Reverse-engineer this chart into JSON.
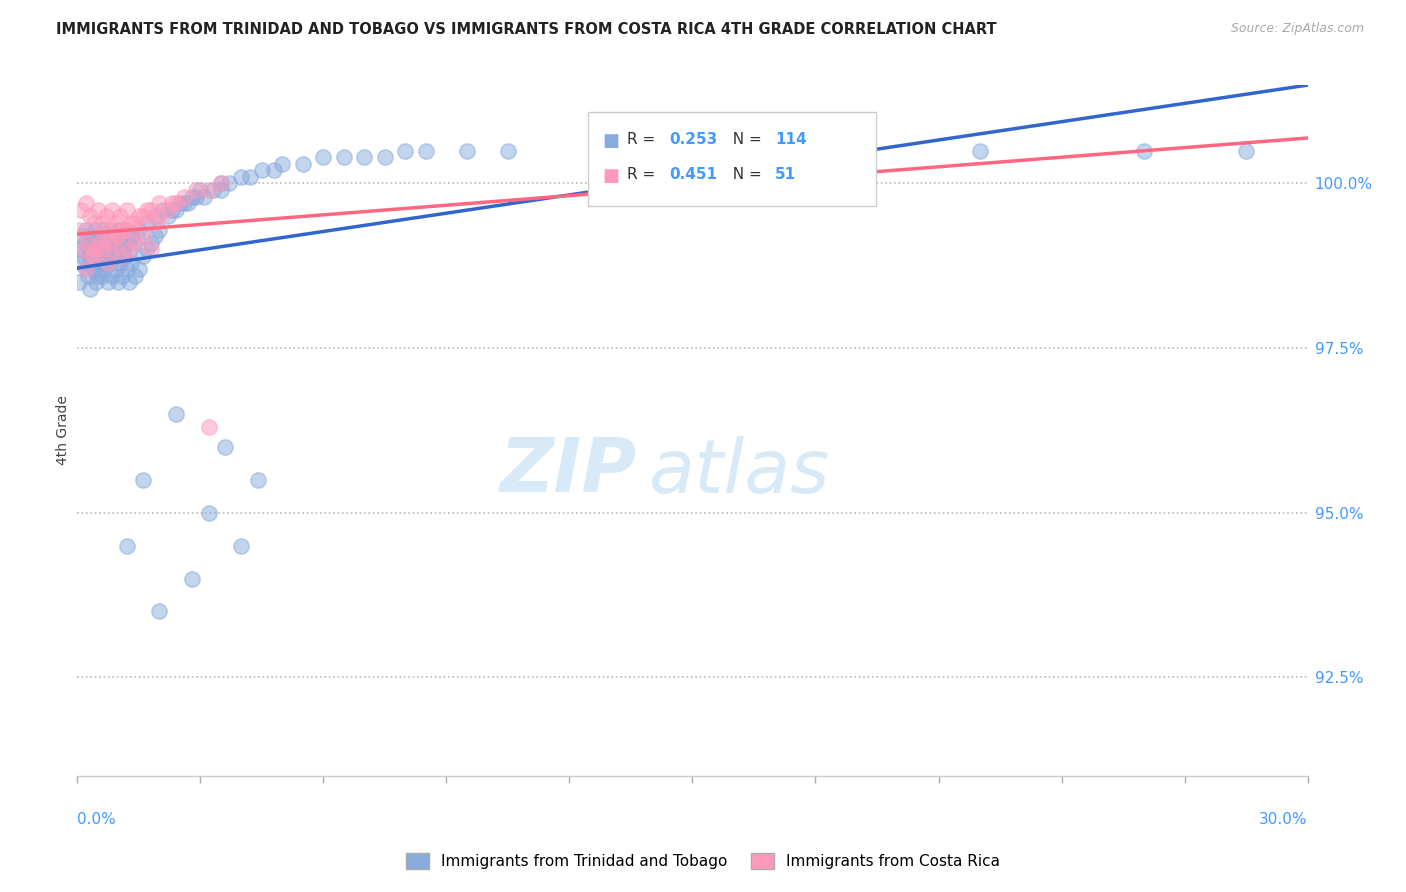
{
  "title": "IMMIGRANTS FROM TRINIDAD AND TOBAGO VS IMMIGRANTS FROM COSTA RICA 4TH GRADE CORRELATION CHART",
  "source": "Source: ZipAtlas.com",
  "ylabel": "4th Grade",
  "y_ticks": [
    92.5,
    95.0,
    97.5,
    100.0
  ],
  "y_tick_labels": [
    "92.5%",
    "95.0%",
    "97.5%",
    "100.0%"
  ],
  "xlim": [
    0.0,
    30.0
  ],
  "ylim": [
    91.0,
    101.5
  ],
  "legend_blue_label": "Immigrants from Trinidad and Tobago",
  "legend_pink_label": "Immigrants from Costa Rica",
  "R_blue": 0.253,
  "N_blue": 114,
  "R_pink": 0.451,
  "N_pink": 51,
  "blue_color": "#88AADD",
  "pink_color": "#FF99BB",
  "blue_line_color": "#3366CC",
  "pink_line_color": "#FF6680",
  "blue_scatter_x": [
    0.05,
    0.08,
    0.1,
    0.12,
    0.15,
    0.18,
    0.2,
    0.22,
    0.25,
    0.28,
    0.3,
    0.32,
    0.35,
    0.38,
    0.4,
    0.42,
    0.45,
    0.48,
    0.5,
    0.52,
    0.55,
    0.58,
    0.6,
    0.62,
    0.65,
    0.68,
    0.7,
    0.72,
    0.75,
    0.78,
    0.8,
    0.82,
    0.85,
    0.88,
    0.9,
    0.92,
    0.95,
    0.98,
    1.0,
    1.02,
    1.05,
    1.08,
    1.1,
    1.12,
    1.15,
    1.18,
    1.2,
    1.22,
    1.25,
    1.28,
    1.3,
    1.35,
    1.4,
    1.45,
    1.5,
    1.6,
    1.7,
    1.8,
    1.9,
    2.0,
    2.2,
    2.4,
    2.6,
    2.8,
    3.0,
    3.5,
    4.0,
    4.5,
    5.0,
    6.0,
    7.0,
    8.0,
    10.5,
    14.0,
    18.0,
    22.0,
    26.0,
    28.5,
    0.3,
    0.5,
    0.7,
    0.9,
    1.1,
    1.3,
    1.5,
    1.7,
    1.9,
    2.1,
    2.3,
    2.5,
    2.7,
    2.9,
    3.1,
    3.3,
    3.5,
    3.7,
    4.2,
    4.8,
    5.5,
    6.5,
    7.5,
    8.5,
    9.5,
    1.2,
    1.6,
    2.0,
    2.4,
    2.8,
    3.2,
    3.6,
    4.0,
    4.4
  ],
  "blue_scatter_y": [
    98.5,
    99.0,
    98.8,
    99.2,
    98.9,
    99.1,
    98.7,
    99.3,
    98.6,
    99.0,
    98.9,
    99.2,
    98.8,
    99.1,
    98.7,
    99.3,
    98.5,
    99.0,
    98.9,
    99.2,
    98.8,
    99.1,
    98.6,
    99.3,
    98.7,
    99.0,
    98.9,
    99.2,
    98.5,
    99.1,
    98.8,
    99.3,
    98.6,
    99.0,
    98.9,
    99.2,
    98.7,
    99.1,
    98.5,
    99.3,
    98.8,
    99.0,
    98.6,
    99.2,
    98.9,
    99.1,
    98.7,
    99.3,
    98.5,
    99.0,
    98.8,
    99.1,
    98.6,
    99.2,
    98.7,
    98.9,
    99.0,
    99.1,
    99.2,
    99.3,
    99.5,
    99.6,
    99.7,
    99.8,
    99.9,
    100.0,
    100.1,
    100.2,
    100.3,
    100.4,
    100.4,
    100.5,
    100.5,
    100.5,
    100.5,
    100.5,
    100.5,
    100.5,
    98.4,
    98.6,
    98.8,
    99.0,
    99.1,
    99.2,
    99.3,
    99.4,
    99.5,
    99.6,
    99.6,
    99.7,
    99.7,
    99.8,
    99.8,
    99.9,
    99.9,
    100.0,
    100.1,
    100.2,
    100.3,
    100.4,
    100.4,
    100.5,
    100.5,
    94.5,
    95.5,
    93.5,
    96.5,
    94.0,
    95.0,
    96.0,
    94.5,
    95.5
  ],
  "pink_scatter_x": [
    0.05,
    0.1,
    0.15,
    0.2,
    0.25,
    0.3,
    0.35,
    0.4,
    0.45,
    0.5,
    0.55,
    0.6,
    0.65,
    0.7,
    0.75,
    0.8,
    0.85,
    0.9,
    0.95,
    1.0,
    1.05,
    1.1,
    1.15,
    1.2,
    1.25,
    1.3,
    1.4,
    1.5,
    1.6,
    1.7,
    1.8,
    1.9,
    2.0,
    2.2,
    2.4,
    0.2,
    0.4,
    0.6,
    0.8,
    1.0,
    1.2,
    1.4,
    1.6,
    1.8,
    2.0,
    2.3,
    2.6,
    2.9,
    3.2,
    3.5,
    3.2
  ],
  "pink_scatter_y": [
    99.3,
    99.6,
    99.0,
    99.7,
    99.1,
    99.5,
    98.9,
    99.4,
    99.0,
    99.6,
    99.1,
    99.4,
    99.2,
    99.5,
    98.8,
    99.3,
    99.6,
    99.0,
    99.4,
    99.2,
    99.5,
    98.9,
    99.3,
    99.6,
    99.0,
    99.4,
    99.1,
    99.5,
    99.2,
    99.6,
    99.0,
    99.4,
    99.5,
    99.6,
    99.7,
    98.7,
    98.9,
    99.0,
    99.1,
    99.2,
    99.3,
    99.4,
    99.5,
    99.6,
    99.7,
    99.7,
    99.8,
    99.9,
    99.9,
    100.0,
    96.3
  ]
}
